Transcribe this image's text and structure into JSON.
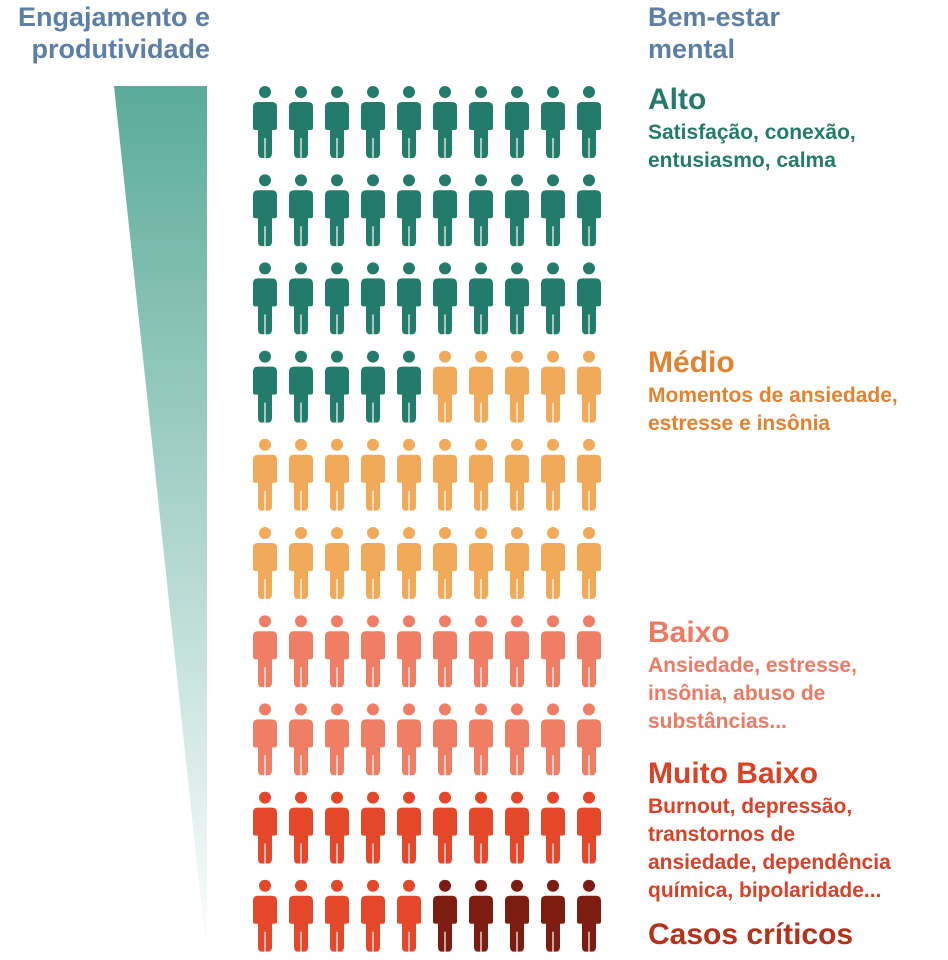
{
  "header": {
    "left_line1": "Engajamento e",
    "left_line2": "produtividade",
    "right_line1": "Bem-estar",
    "right_line2": "mental"
  },
  "categories": {
    "alto": {
      "title": "Alto",
      "desc_line1": "Satisfação, conexão,",
      "desc_line2": "entusiasmo, calma",
      "color": "#237b6b"
    },
    "medio": {
      "title": "Médio",
      "desc_line1": "Momentos de ansiedade,",
      "desc_line2": "estresse e insônia",
      "color": "#e5822f"
    },
    "baixo": {
      "title": "Baixo",
      "desc_line1": "Ansiedade, estresse,",
      "desc_line2": "insônia, abuso de",
      "desc_line3": "substâncias...",
      "color": "#ee7a64"
    },
    "muito_baixo": {
      "title": "Muito Baixo",
      "desc_line1": "Burnout, depressão,",
      "desc_line2": "transtornos de",
      "desc_line3": "ansiedade, dependência",
      "desc_line4": "química, bipolaridade...",
      "color": "#dc4025"
    },
    "casos_criticos": {
      "title": "Casos críticos",
      "color": "#b5321a"
    }
  },
  "figure_colors": {
    "alto": "#237b6b",
    "medio": "#f1a95a",
    "baixo": "#f07e64",
    "muito_baixo": "#e5472b",
    "casos_criticos": "#7d1c10"
  },
  "wedge_colors": {
    "top": "#5aab9a",
    "bottom": "#ffffff"
  },
  "people_grid": {
    "columns": 10,
    "rows": [
      [
        "alto",
        "alto",
        "alto",
        "alto",
        "alto",
        "alto",
        "alto",
        "alto",
        "alto",
        "alto"
      ],
      [
        "alto",
        "alto",
        "alto",
        "alto",
        "alto",
        "alto",
        "alto",
        "alto",
        "alto",
        "alto"
      ],
      [
        "alto",
        "alto",
        "alto",
        "alto",
        "alto",
        "alto",
        "alto",
        "alto",
        "alto",
        "alto"
      ],
      [
        "alto",
        "alto",
        "alto",
        "alto",
        "alto",
        "medio",
        "medio",
        "medio",
        "medio",
        "medio"
      ],
      [
        "medio",
        "medio",
        "medio",
        "medio",
        "medio",
        "medio",
        "medio",
        "medio",
        "medio",
        "medio"
      ],
      [
        "medio",
        "medio",
        "medio",
        "medio",
        "medio",
        "medio",
        "medio",
        "medio",
        "medio",
        "medio"
      ],
      [
        "baixo",
        "baixo",
        "baixo",
        "baixo",
        "baixo",
        "baixo",
        "baixo",
        "baixo",
        "baixo",
        "baixo"
      ],
      [
        "baixo",
        "baixo",
        "baixo",
        "baixo",
        "baixo",
        "baixo",
        "baixo",
        "baixo",
        "baixo",
        "baixo"
      ],
      [
        "muito_baixo",
        "muito_baixo",
        "muito_baixo",
        "muito_baixo",
        "muito_baixo",
        "muito_baixo",
        "muito_baixo",
        "muito_baixo",
        "muito_baixo",
        "muito_baixo"
      ],
      [
        "muito_baixo",
        "muito_baixo",
        "muito_baixo",
        "muito_baixo",
        "muito_baixo",
        "casos_criticos",
        "casos_criticos",
        "casos_criticos",
        "casos_criticos",
        "casos_criticos"
      ]
    ]
  }
}
